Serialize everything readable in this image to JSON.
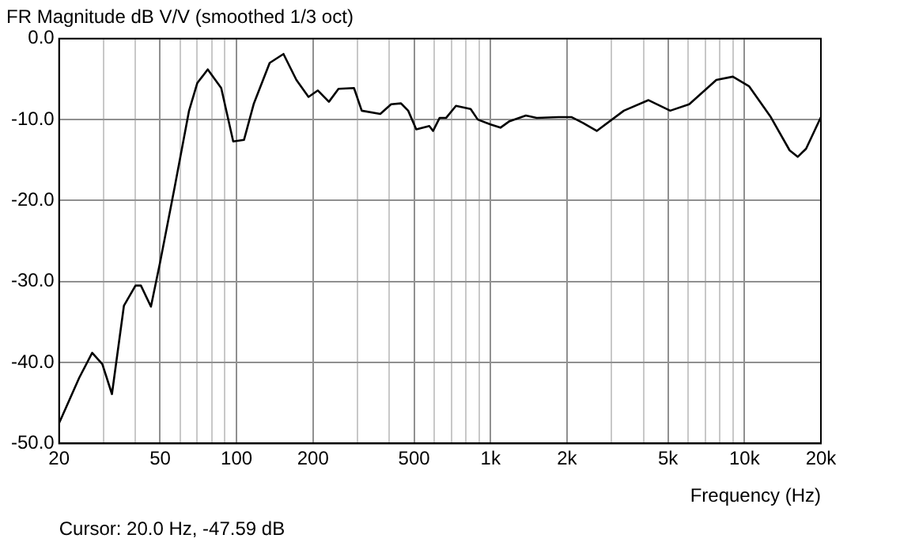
{
  "chart_data": {
    "type": "line",
    "title": "FR Magnitude dB V/V (smoothed 1/3 oct)",
    "xlabel": "Frequency (Hz)",
    "log": "x",
    "grid": true,
    "legend": false,
    "marker": "none",
    "line_style": "solid",
    "annotations": [
      "Cursor: 20.0 Hz, -47.59 dB"
    ],
    "xlim": [
      20,
      20000
    ],
    "xticks": [
      20,
      {
        "value": 30,
        "label": null
      },
      {
        "value": 40,
        "label": null
      },
      50,
      {
        "value": 60,
        "label": null
      },
      {
        "value": 70,
        "label": null
      },
      {
        "value": 80,
        "label": null
      },
      {
        "value": 90,
        "label": null
      },
      100,
      200,
      {
        "value": 300,
        "label": null
      },
      {
        "value": 400,
        "label": null
      },
      500,
      {
        "value": 600,
        "label": null
      },
      {
        "value": 700,
        "label": null
      },
      {
        "value": 800,
        "label": null
      },
      {
        "value": 900,
        "label": null
      },
      {
        "value": 1000,
        "label": "1k"
      },
      {
        "value": 2000,
        "label": "2k"
      },
      {
        "value": 3000,
        "label": null
      },
      {
        "value": 4000,
        "label": null
      },
      {
        "value": 5000,
        "label": "5k"
      },
      {
        "value": 6000,
        "label": null
      },
      {
        "value": 7000,
        "label": null
      },
      {
        "value": 8000,
        "label": null
      },
      {
        "value": 9000,
        "label": null
      },
      {
        "value": 10000,
        "label": "10k"
      },
      {
        "value": 20000,
        "label": "20k"
      }
    ],
    "ylim": [
      -50,
      0
    ],
    "yticks": [
      {
        "value": -50,
        "label": "-50.0"
      },
      {
        "value": -40,
        "label": "-40.0"
      },
      {
        "value": -30,
        "label": "-30.0"
      },
      {
        "value": -20,
        "label": "-20.0"
      },
      {
        "value": -10,
        "label": "-10.0"
      },
      {
        "value": 0,
        "label": "0.0"
      }
    ],
    "x": [
      20,
      24,
      27,
      29.6,
      32.3,
      36,
      40,
      42,
      46,
      50,
      57,
      65,
      70,
      77,
      87,
      97,
      107,
      117,
      135,
      153,
      172,
      192,
      209,
      231,
      252,
      290,
      311,
      368,
      406,
      444,
      474,
      510,
      574,
      594,
      630,
      668,
      731,
      835,
      891,
      1000,
      1094,
      1188,
      1378,
      1521,
      1852,
      2088,
      2305,
      2620,
      3350,
      4190,
      5100,
      6060,
      7750,
      9000,
      10440,
      12700,
      15060,
      16220,
      17480,
      20000
    ],
    "series": [
      {
        "color": "#000000",
        "values": [
          -47.5,
          -41.9,
          -38.8,
          -40.2,
          -43.9,
          -33,
          -30.5,
          -30.5,
          -33.1,
          -27.6,
          -18.4,
          -8.9,
          -5.5,
          -3.8,
          -6.1,
          -12.7,
          -12.5,
          -8,
          -3,
          -1.9,
          -5.1,
          -7.2,
          -6.4,
          -7.8,
          -6.2,
          -6.1,
          -8.9,
          -9.3,
          -8.1,
          -8,
          -8.9,
          -11.2,
          -10.8,
          -11.4,
          -9.8,
          -9.8,
          -8.3,
          -8.7,
          -10,
          -10.6,
          -11,
          -10.2,
          -9.5,
          -9.8,
          -9.7,
          -9.7,
          -10.4,
          -11.4,
          -8.9,
          -7.6,
          -8.9,
          -8.1,
          -5.1,
          -4.7,
          -5.9,
          -9.7,
          -13.8,
          -14.6,
          -13.6,
          -9.7
        ]
      }
    ]
  }
}
